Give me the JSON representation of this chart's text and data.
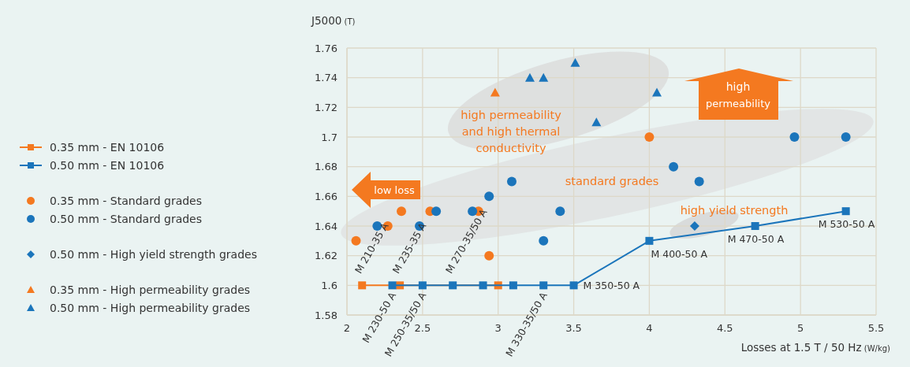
{
  "chart_data": {
    "type": "scatter",
    "xlabel": "Losses at 1.5 T / 50 Hz (W/kg)",
    "ylabel": "J5000 (T)",
    "xlim": [
      2,
      5.5
    ],
    "xticks": [
      2,
      2.5,
      3,
      3.5,
      4,
      4.5,
      5,
      5.5
    ],
    "ylim": [
      1.58,
      1.76
    ],
    "yticks": [
      1.58,
      1.6,
      1.62,
      1.64,
      1.66,
      1.68,
      1.7,
      1.72,
      1.74,
      1.76
    ],
    "grid": true,
    "legend": "left",
    "series": [
      {
        "name": "0.35 mm - EN 10106",
        "type": "line",
        "marker": "square",
        "color": "#f47920",
        "x": [
          2.1,
          2.35,
          3.0
        ],
        "values": [
          1.6,
          1.6,
          1.6
        ]
      },
      {
        "name": "0.50 mm - EN 10106",
        "type": "line",
        "marker": "square",
        "color": "#1b75bb",
        "x": [
          2.3,
          2.5,
          2.7,
          2.9,
          3.1,
          3.3,
          3.5,
          4.0,
          4.7,
          5.3
        ],
        "values": [
          1.6,
          1.6,
          1.6,
          1.6,
          1.6,
          1.6,
          1.6,
          1.63,
          1.64,
          1.65
        ]
      },
      {
        "name": "0.35 mm - Standard grades",
        "type": "scatter",
        "marker": "circle",
        "color": "#f47920",
        "x": [
          2.06,
          2.27,
          2.36,
          2.55,
          2.87,
          2.94,
          4.0
        ],
        "values": [
          1.63,
          1.64,
          1.65,
          1.65,
          1.65,
          1.62,
          1.7
        ]
      },
      {
        "name": "0.50 mm - Standard grades",
        "type": "scatter",
        "marker": "circle",
        "color": "#1b75bb",
        "x": [
          2.2,
          2.48,
          2.59,
          2.83,
          2.94,
          3.09,
          3.3,
          3.41,
          4.16,
          4.33,
          4.96,
          5.3
        ],
        "values": [
          1.64,
          1.64,
          1.65,
          1.65,
          1.66,
          1.67,
          1.63,
          1.65,
          1.68,
          1.67,
          1.7,
          1.7
        ]
      },
      {
        "name": "0.50 mm - High yield strength grades",
        "type": "scatter",
        "marker": "diamond",
        "color": "#1b75bb",
        "x": [
          4.3
        ],
        "values": [
          1.64
        ]
      },
      {
        "name": "0.35 mm - High permeability grades",
        "type": "scatter",
        "marker": "triangle",
        "color": "#f47920",
        "x": [
          2.98
        ],
        "values": [
          1.73
        ]
      },
      {
        "name": "0.50 mm - High permeability grades",
        "type": "scatter",
        "marker": "triangle",
        "color": "#1b75bb",
        "x": [
          3.21,
          3.3,
          3.51,
          3.65,
          4.05
        ],
        "values": [
          1.74,
          1.74,
          1.75,
          1.71,
          1.73
        ]
      }
    ],
    "annotations": [
      "high permeability and high thermal conductivity",
      "standard grades",
      "high yield strength",
      "low loss",
      "high permeability",
      {
        "text": "M 210-35 A",
        "x": 2.1,
        "y": 1.6
      },
      {
        "text": "M 230-50 A",
        "x": 2.3,
        "y": 1.6
      },
      {
        "text": "M 235-35 A",
        "x": 2.35,
        "y": 1.6
      },
      {
        "text": "M 250-35/50 A",
        "x": 2.5,
        "y": 1.6
      },
      {
        "text": "M 270-35/50 A",
        "x": 2.7,
        "y": 1.6
      },
      {
        "text": "M 330-35/50 A",
        "x": 3.3,
        "y": 1.6
      },
      {
        "text": "M 350-50 A",
        "x": 3.5,
        "y": 1.6
      },
      {
        "text": "M 400-50 A",
        "x": 4.0,
        "y": 1.63
      },
      {
        "text": "M 470-50 A",
        "x": 4.7,
        "y": 1.64
      },
      {
        "text": "M 530-50 A",
        "x": 5.3,
        "y": 1.65
      }
    ]
  }
}
